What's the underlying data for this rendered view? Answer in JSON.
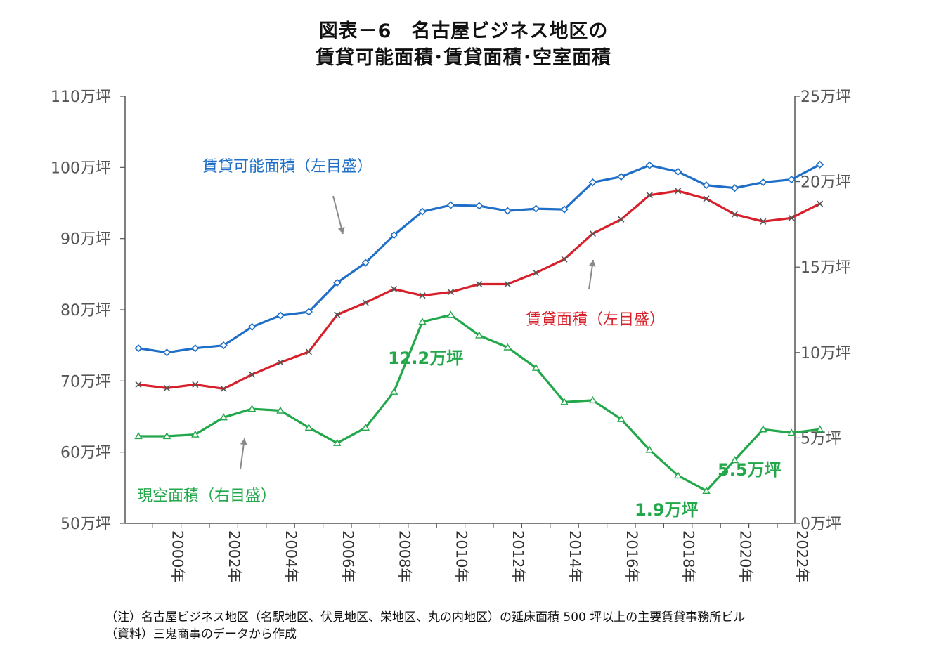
{
  "title": {
    "line1": "図表－6　名古屋ビジネス地区の",
    "line2": "賃貸可能面積･賃貸面積･空室面積"
  },
  "notes": {
    "note1": "（注）名古屋ビジネス地区（名駅地区、伏見地区、栄地区、丸の内地区）の延床面積 500 坪以上の主要賃貸事務所ビル",
    "note2": "（資料）三鬼商事のデータから作成"
  },
  "chart_data": {
    "type": "line",
    "title": "図表－6 名古屋ビジネス地区の賃貸可能面積･賃貸面積･空室面積",
    "x": [
      1999,
      2000,
      2001,
      2002,
      2003,
      2004,
      2005,
      2006,
      2007,
      2008,
      2009,
      2010,
      2011,
      2012,
      2013,
      2014,
      2015,
      2016,
      2017,
      2018,
      2019,
      2020,
      2021,
      2022,
      2023
    ],
    "x_tick_labels": [
      "2000年",
      "2002年",
      "2004年",
      "2006年",
      "2008年",
      "2010年",
      "2012年",
      "2014年",
      "2016年",
      "2018年",
      "2020年",
      "2022年"
    ],
    "x_tick_years": [
      2000,
      2002,
      2004,
      2006,
      2008,
      2010,
      2012,
      2014,
      2016,
      2018,
      2020,
      2022
    ],
    "left_axis": {
      "ylim": [
        50,
        110
      ],
      "ticks": [
        50,
        60,
        70,
        80,
        90,
        100,
        110
      ],
      "tick_labels": [
        "50万坪",
        "60万坪",
        "70万坪",
        "80万坪",
        "90万坪",
        "100万坪",
        "110万坪"
      ]
    },
    "right_axis": {
      "ylim": [
        0,
        25
      ],
      "ticks": [
        0,
        5,
        10,
        15,
        20,
        25
      ],
      "tick_labels": [
        "0万坪",
        "5万坪",
        "10万坪",
        "15万坪",
        "20万坪",
        "25万坪"
      ]
    },
    "series": [
      {
        "name": "賃貸可能面積（左目盛）",
        "axis": "left",
        "color": "#1f6fc8",
        "marker": "diamond",
        "values": [
          74.6,
          74.0,
          74.6,
          75.0,
          77.6,
          79.2,
          79.7,
          83.8,
          86.6,
          90.5,
          93.8,
          94.7,
          94.6,
          93.9,
          94.2,
          94.1,
          97.9,
          98.7,
          100.3,
          99.4,
          97.5,
          97.1,
          97.9,
          98.3,
          100.4
        ]
      },
      {
        "name": "賃貸面積（左目盛）",
        "axis": "left",
        "color": "#d8202a",
        "marker": "x",
        "values": [
          69.5,
          69.0,
          69.5,
          68.9,
          70.9,
          72.6,
          74.1,
          79.3,
          81.0,
          82.9,
          82.0,
          82.5,
          83.6,
          83.6,
          85.2,
          87.1,
          90.7,
          92.7,
          96.1,
          96.7,
          95.6,
          93.4,
          92.4,
          92.9,
          94.9
        ]
      },
      {
        "name": "現空面積（右目盛）",
        "axis": "right",
        "color": "#22a84a",
        "marker": "triangle",
        "values": [
          5.1,
          5.1,
          5.2,
          6.2,
          6.7,
          6.6,
          5.6,
          4.7,
          5.6,
          7.7,
          11.8,
          12.2,
          11.0,
          10.3,
          9.1,
          7.1,
          7.2,
          6.1,
          4.3,
          2.8,
          1.9,
          3.7,
          5.5,
          5.3,
          5.5
        ]
      }
    ],
    "annotations": [
      {
        "text": "12.2万坪",
        "series": 2
      },
      {
        "text": "1.9万坪",
        "series": 2
      },
      {
        "text": "5.5万坪",
        "series": 2
      }
    ]
  }
}
